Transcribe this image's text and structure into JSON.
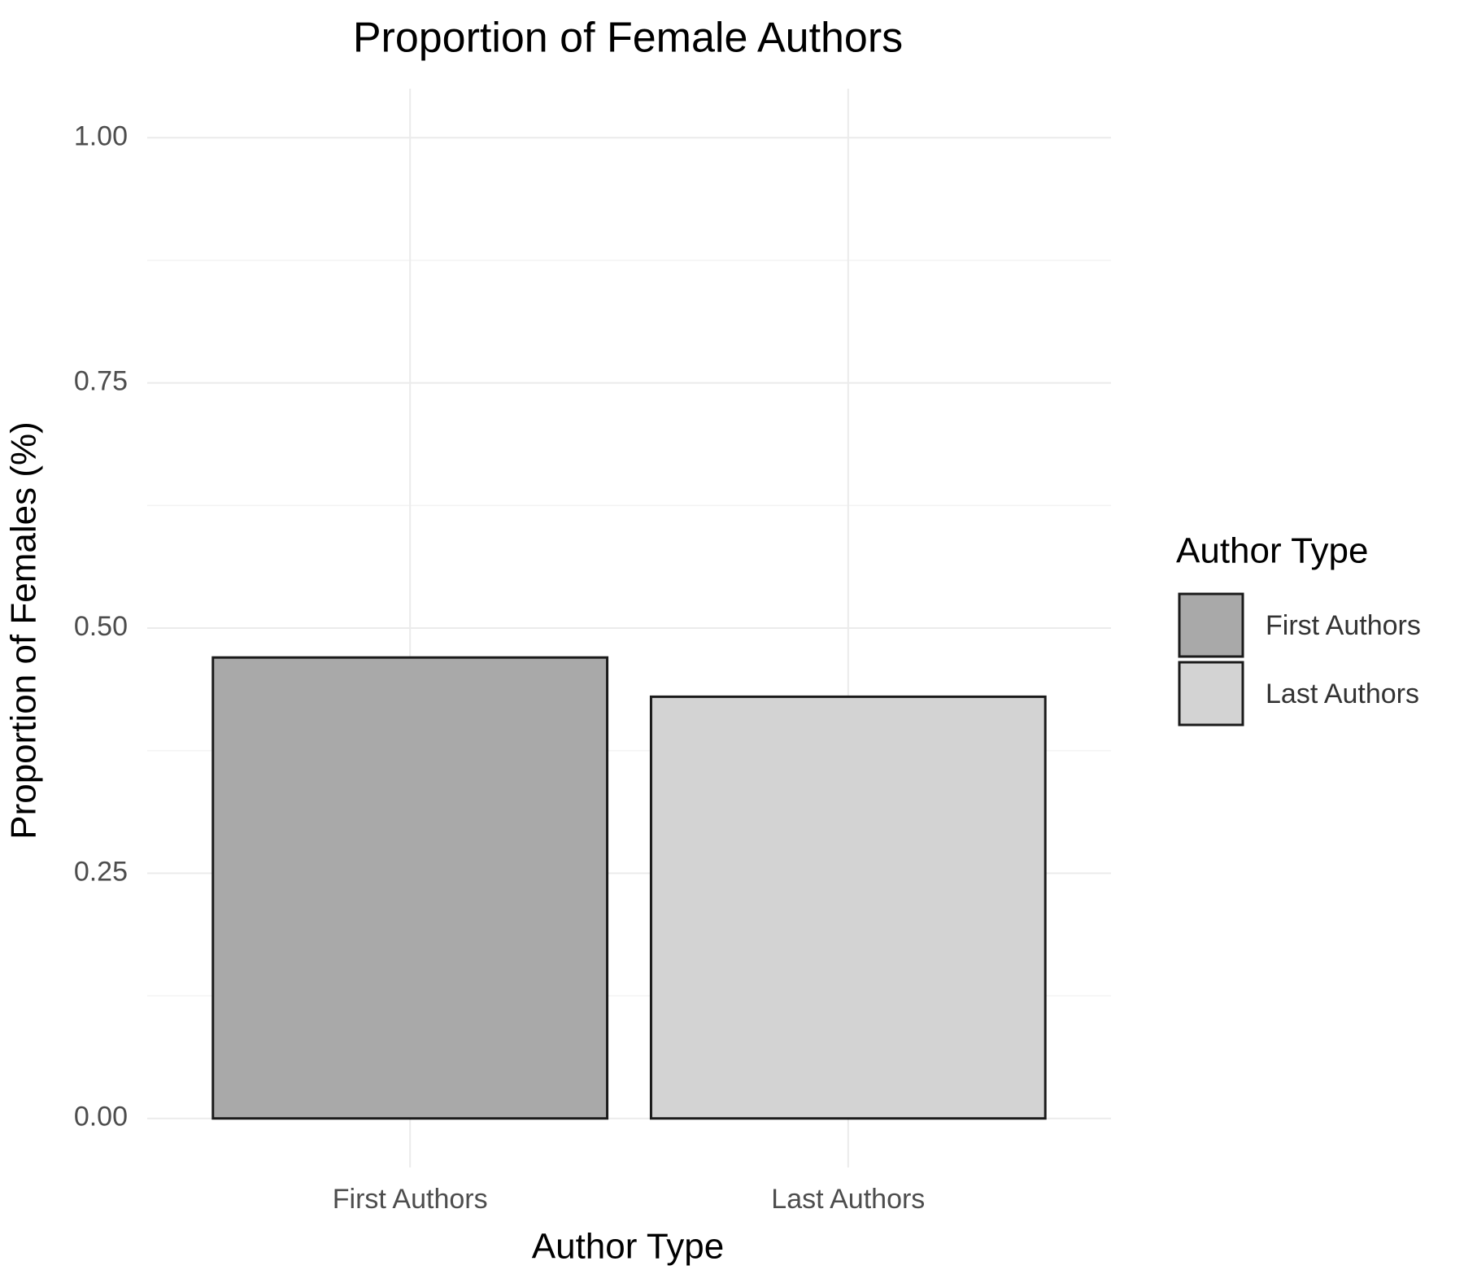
{
  "chart_data": {
    "type": "bar",
    "title": "Proportion of Female Authors",
    "x_label": "Author Type",
    "y_label": "Proportion of Females (%)",
    "categories": [
      "First Authors",
      "Last Authors"
    ],
    "values": [
      0.47,
      0.43
    ],
    "colors": [
      "#a9a9a9",
      "#d3d3d3"
    ],
    "ylim": [
      -0.05,
      1.05
    ],
    "yticks": [
      {
        "value": 0,
        "label": "0.00"
      },
      {
        "value": 0.25,
        "label": "0.25"
      },
      {
        "value": 0.5,
        "label": "0.50"
      },
      {
        "value": 0.75,
        "label": "0.75"
      },
      {
        "value": 1,
        "label": "1.00"
      }
    ],
    "grid": true,
    "legend_title": "Author Type",
    "legend": "right"
  }
}
